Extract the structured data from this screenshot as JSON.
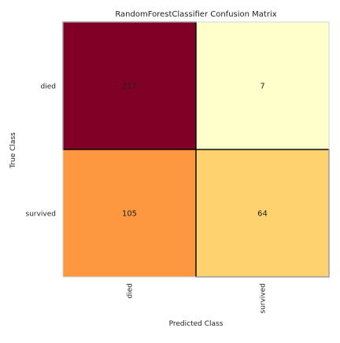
{
  "chart_data": {
    "type": "heatmap",
    "title": "RandomForestClassifier Confusion Matrix",
    "xlabel": "Predicted Class",
    "ylabel": "True Class",
    "x_categories": [
      "died",
      "survived"
    ],
    "y_categories": [
      "died",
      "survived"
    ],
    "values": [
      [
        217,
        7
      ],
      [
        105,
        64
      ]
    ],
    "colormap": "YlOrRd",
    "colors": {
      "low": "#ffffcc",
      "high": "#800026",
      "highlight_border": "#000000",
      "frame": "#d6d6d6"
    },
    "highlight_diagonal": true,
    "grid": false,
    "legend": "none"
  }
}
